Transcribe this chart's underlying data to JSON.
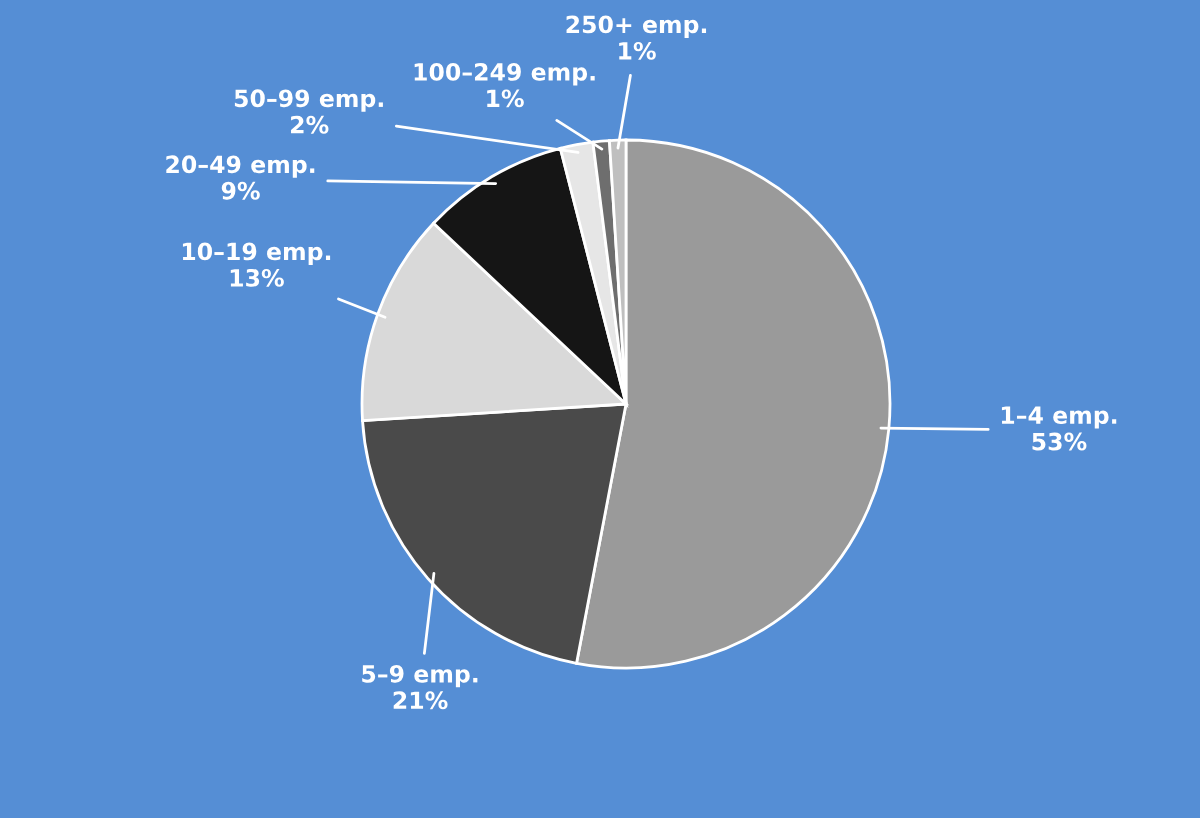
{
  "chart_data": {
    "type": "pie",
    "categories": [
      "1–4 emp.",
      "5–9 emp.",
      "10–19 emp.",
      "20–49 emp.",
      "50–99 emp.",
      "100–249 emp.",
      "250+ emp."
    ],
    "values": [
      53,
      21,
      13,
      9,
      2,
      1,
      1
    ],
    "value_labels": [
      "53%",
      "21%",
      "13%",
      "9%",
      "2%",
      "1%",
      "1%"
    ],
    "colors": [
      "#9a9a9a",
      "#4a4a4a",
      "#d9d9d9",
      "#151515",
      "#e6e6e6",
      "#6e6e6e",
      "#bfbfbf"
    ]
  }
}
